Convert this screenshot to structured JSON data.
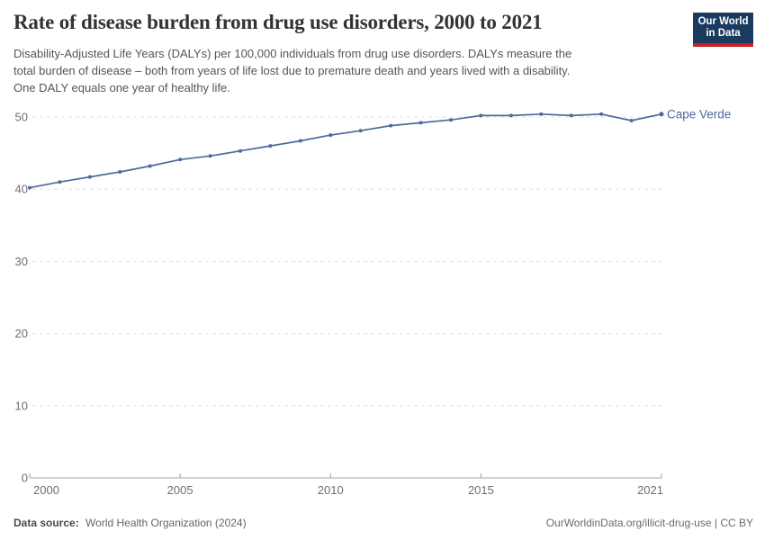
{
  "header": {
    "title": "Rate of disease burden from drug use disorders, 2000 to 2021",
    "subtitle_lines": [
      "Disability-Adjusted Life Years (DALYs) per 100,000 individuals from drug use disorders. DALYs measure the",
      "total burden of disease – both from years of life lost due to premature death and years lived with a disability.",
      "One DALY equals one year of healthy life."
    ],
    "logo": {
      "line1": "Our World",
      "line2": "in Data"
    }
  },
  "chart_data": {
    "type": "line",
    "title": "Rate of disease burden from drug use disorders, 2000 to 2021",
    "xlabel": "",
    "ylabel": "DALYs per 100,000 individuals",
    "x": [
      2000,
      2001,
      2002,
      2003,
      2004,
      2005,
      2006,
      2007,
      2008,
      2009,
      2010,
      2011,
      2012,
      2013,
      2014,
      2015,
      2016,
      2017,
      2018,
      2019,
      2020,
      2021
    ],
    "series": [
      {
        "name": "Cape Verde",
        "color": "#4C6A9C",
        "values": [
          40.2,
          41.0,
          41.7,
          42.4,
          43.2,
          44.1,
          44.6,
          45.3,
          46.0,
          46.7,
          47.5,
          48.1,
          48.8,
          49.2,
          49.6,
          50.2,
          50.2,
          50.4,
          50.2,
          50.4,
          49.5,
          50.4
        ]
      }
    ],
    "xlim": [
      2000,
      2021
    ],
    "ylim": [
      0,
      50
    ],
    "xticks": [
      2000,
      2005,
      2010,
      2015,
      2021
    ],
    "yticks": [
      0,
      10,
      20,
      30,
      40,
      50
    ],
    "grid": "horizontal-dashed",
    "legend": "end-of-line-label"
  },
  "footer": {
    "source_label": "Data source:",
    "source_value": "World Health Organization (2024)",
    "credit": "OurWorldinData.org/illicit-drug-use | CC BY"
  },
  "colors": {
    "line": "#4C6A9C",
    "grid": "#dfdfdf",
    "axis": "#a3a3a3",
    "tick_label": "#6f6f6f",
    "logo_bg": "#1a3a5f",
    "logo_accent": "#cb2026"
  }
}
